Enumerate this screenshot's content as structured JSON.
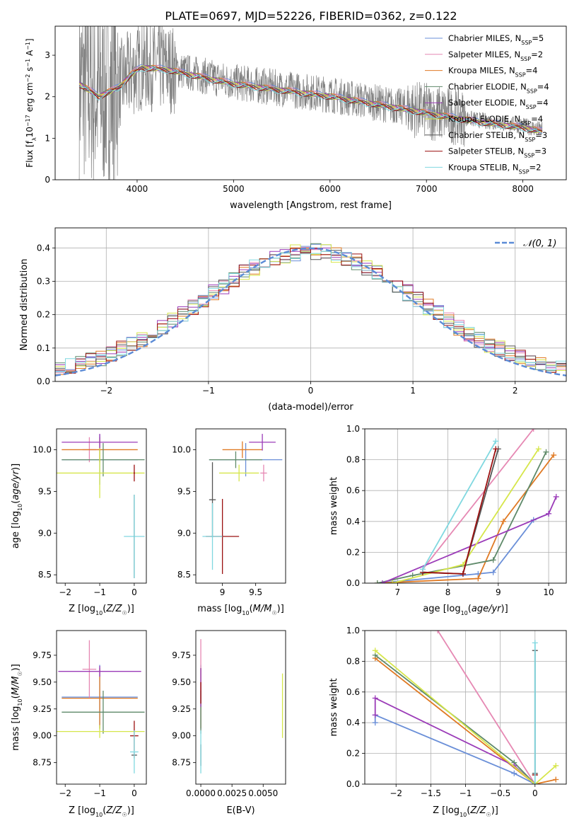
{
  "figure": {
    "title": "PLATE=0697, MJD=52226, FIBERID=0362, z=0.122"
  },
  "series_legend": [
    {
      "name": "Chabrier MILES, N_SSP=5",
      "main": "Chabrier MILES, N",
      "sub": "SSP",
      "suffix": "=5",
      "color": "#6a8fd8"
    },
    {
      "name": "Salpeter MILES, N_SSP=2",
      "main": "Salpeter MILES, N",
      "sub": "SSP",
      "suffix": "=2",
      "color": "#e688b3"
    },
    {
      "name": "Kroupa MILES, N_SSP=4",
      "main": "Kroupa MILES, N",
      "sub": "SSP",
      "suffix": "=4",
      "color": "#e07a24"
    },
    {
      "name": "Chabrier ELODIE, N_SSP=4",
      "main": "Chabrier ELODIE, N",
      "sub": "SSP",
      "suffix": "=4",
      "color": "#5f8a6a"
    },
    {
      "name": "Salpeter ELODIE, N_SSP=4",
      "main": "Salpeter ELODIE, N",
      "sub": "SSP",
      "suffix": "=4",
      "color": "#9b3bb8"
    },
    {
      "name": "Kroupa ELODIE, N_SSP=4",
      "main": "Kroupa ELODIE, N",
      "sub": "SSP",
      "suffix": "=4",
      "color": "#d6e64a"
    },
    {
      "name": "Chabrier STELIB, N_SSP=3",
      "main": "Chabrier STELIB, N",
      "sub": "SSP",
      "suffix": "=3",
      "color": "#555555"
    },
    {
      "name": "Salpeter STELIB, N_SSP=3",
      "main": "Salpeter STELIB, N",
      "sub": "SSP",
      "suffix": "=3",
      "color": "#9b1010"
    },
    {
      "name": "Kroupa STELIB, N_SSP=2",
      "main": "Kroupa STELIB, N",
      "sub": "SSP",
      "suffix": "=2",
      "color": "#80d8e0"
    }
  ],
  "chart_data": [
    {
      "id": "spectrum",
      "type": "line",
      "xlabel": "wavelength [Angstrom, rest frame]",
      "ylabel": "Flux [f_λ 10^-17 erg cm^-2 s^-1 A^-1]",
      "xlim": [
        3150,
        8450
      ],
      "ylim": [
        0,
        3.7
      ],
      "xticks": [
        4000,
        5000,
        6000,
        7000,
        8000
      ],
      "yticks": [
        0,
        1,
        2,
        3
      ],
      "data_color": "#808080",
      "model_points": [
        [
          3400,
          2.35
        ],
        [
          3600,
          2.05
        ],
        [
          3800,
          2.25
        ],
        [
          3950,
          2.6
        ],
        [
          4050,
          2.75
        ],
        [
          4300,
          2.7
        ],
        [
          4600,
          2.55
        ],
        [
          5000,
          2.35
        ],
        [
          5500,
          2.2
        ],
        [
          6000,
          2.05
        ],
        [
          6500,
          1.85
        ],
        [
          7000,
          1.65
        ],
        [
          7500,
          1.45
        ],
        [
          8000,
          1.3
        ],
        [
          8200,
          1.2
        ]
      ],
      "legend_position": "upper right"
    },
    {
      "id": "residuals",
      "type": "step",
      "xlabel": "(data-model)/error",
      "ylabel": "Normed distribution",
      "xlim": [
        -2.5,
        2.5
      ],
      "ylim": [
        0,
        0.46
      ],
      "xticks": [
        -2,
        -1,
        0,
        1,
        2
      ],
      "yticks": [
        0.0,
        0.1,
        0.2,
        0.3,
        0.4
      ],
      "grid": true,
      "reference_curve": {
        "label": "𝒩(0, 1)",
        "mean": 0,
        "sigma": 1,
        "color": "#5b8bd6"
      },
      "bin_width": 0.1,
      "legend_position": "upper right"
    },
    {
      "id": "age-vs-Z",
      "type": "errorbar",
      "xlabel": "Z [log10(Z/Z☉)]",
      "ylabel": "age [log10(age/yr)]",
      "xlim": [
        -2.25,
        0.35
      ],
      "ylim": [
        8.4,
        10.25
      ],
      "xticks": [
        -2,
        -1,
        0
      ],
      "yticks": [
        8.5,
        9.0,
        9.5,
        10.0
      ],
      "points": [
        {
          "x": -1.0,
          "xerr": 1.1,
          "y": 9.88,
          "yerr": 0.3,
          "color": "#6a8fd8"
        },
        {
          "x": -1.3,
          "xerr": 0.2,
          "y": 10.0,
          "yerr": 0.15,
          "color": "#e688b3"
        },
        {
          "x": -1.0,
          "xerr": 1.1,
          "y": 10.0,
          "yerr": 0.15,
          "color": "#e07a24"
        },
        {
          "x": -0.9,
          "xerr": 1.2,
          "y": 9.88,
          "yerr": 0.2,
          "color": "#5f8a6a"
        },
        {
          "x": -1.0,
          "xerr": 1.1,
          "y": 10.09,
          "yerr": 0.1,
          "color": "#9b3bb8"
        },
        {
          "x": -1.0,
          "xerr": 1.3,
          "y": 9.72,
          "yerr": 0.3,
          "color": "#d6e64a"
        },
        {
          "x": 0.0,
          "xerr": 0.02,
          "y": 8.96,
          "yerr": 0.5,
          "color": "#555555"
        },
        {
          "x": 0.0,
          "xerr": 0.02,
          "y": 9.72,
          "yerr": 0.1,
          "color": "#9b1010"
        },
        {
          "x": 0.0,
          "xerr": 0.3,
          "y": 8.96,
          "yerr": 0.5,
          "color": "#80d8e0"
        }
      ]
    },
    {
      "id": "age-vs-mass",
      "type": "errorbar",
      "xlabel": "mass [log10(M/M☉)]",
      "ylabel": "",
      "xlim": [
        8.6,
        9.95
      ],
      "ylim": [
        8.4,
        10.25
      ],
      "xticks": [
        9.0,
        9.5
      ],
      "yticks": [
        8.5,
        9.0,
        9.5,
        10.0
      ],
      "points": [
        {
          "x": 9.35,
          "xerr": 0.55,
          "y": 9.88,
          "yerr": 0.2,
          "color": "#6a8fd8"
        },
        {
          "x": 9.62,
          "xerr": 0.05,
          "y": 9.72,
          "yerr": 0.1,
          "color": "#e688b3"
        },
        {
          "x": 9.3,
          "xerr": 0.3,
          "y": 10.0,
          "yerr": 0.1,
          "color": "#e07a24"
        },
        {
          "x": 9.2,
          "xerr": 0.4,
          "y": 9.88,
          "yerr": 0.1,
          "color": "#5f8a6a"
        },
        {
          "x": 9.6,
          "xerr": 0.2,
          "y": 10.09,
          "yerr": 0.1,
          "color": "#9b3bb8"
        },
        {
          "x": 9.25,
          "xerr": 0.3,
          "y": 9.72,
          "yerr": 0.1,
          "color": "#d6e64a"
        },
        {
          "x": 8.85,
          "xerr": 0.05,
          "y": 9.4,
          "yerr": 0.45,
          "color": "#555555"
        },
        {
          "x": 9.0,
          "xerr": 0.25,
          "y": 8.96,
          "yerr": 0.45,
          "color": "#9b1010"
        },
        {
          "x": 8.85,
          "xerr": 0.15,
          "y": 8.96,
          "yerr": 0.4,
          "color": "#80d8e0"
        }
      ]
    },
    {
      "id": "weight-vs-age",
      "type": "line",
      "xlabel": "age [log10(age/yr)]",
      "ylabel": "mass weight",
      "xlim": [
        6.35,
        10.35
      ],
      "ylim": [
        0,
        1.0
      ],
      "xticks": [
        7,
        8,
        9,
        10
      ],
      "yticks": [
        0.0,
        0.2,
        0.4,
        0.6,
        0.8,
        1.0
      ],
      "grid": true,
      "series": [
        {
          "color": "#6a8fd8",
          "points": [
            [
              6.6,
              0.0
            ],
            [
              8.6,
              0.06
            ],
            [
              8.9,
              0.07
            ],
            [
              9.7,
              0.41
            ],
            [
              10.0,
              0.45
            ]
          ]
        },
        {
          "color": "#e688b3",
          "points": [
            [
              7.5,
              0.09
            ],
            [
              9.7,
              1.0
            ]
          ]
        },
        {
          "color": "#e07a24",
          "points": [
            [
              6.6,
              0.0
            ],
            [
              8.6,
              0.03
            ],
            [
              9.1,
              0.4
            ],
            [
              10.1,
              0.83
            ]
          ]
        },
        {
          "color": "#5f8a6a",
          "points": [
            [
              6.6,
              0.0
            ],
            [
              7.3,
              0.05
            ],
            [
              8.9,
              0.15
            ],
            [
              9.95,
              0.85
            ]
          ]
        },
        {
          "color": "#9b3bb8",
          "points": [
            [
              6.7,
              0.0
            ],
            [
              10.0,
              0.45
            ],
            [
              10.15,
              0.56
            ]
          ]
        },
        {
          "color": "#d6e64a",
          "points": [
            [
              6.9,
              0.0
            ],
            [
              8.3,
              0.12
            ],
            [
              9.8,
              0.87
            ]
          ]
        },
        {
          "color": "#555555",
          "points": [
            [
              7.5,
              0.07
            ],
            [
              8.3,
              0.06
            ],
            [
              9.0,
              0.87
            ]
          ]
        },
        {
          "color": "#9b1010",
          "points": [
            [
              7.5,
              0.07
            ],
            [
              8.3,
              0.06
            ],
            [
              8.95,
              0.87
            ]
          ]
        },
        {
          "color": "#80d8e0",
          "points": [
            [
              7.5,
              0.09
            ],
            [
              8.95,
              0.92
            ]
          ]
        }
      ]
    },
    {
      "id": "mass-vs-Z",
      "type": "errorbar",
      "xlabel": "Z [log10(Z/Z☉)]",
      "ylabel": "mass [log10(M/M☉)]",
      "xlim": [
        -2.25,
        0.35
      ],
      "ylim": [
        8.55,
        9.98
      ],
      "xticks": [
        -2,
        -1,
        0
      ],
      "yticks": [
        8.75,
        9.0,
        9.25,
        9.5,
        9.75
      ],
      "points": [
        {
          "x": -1.0,
          "xerr": 1.1,
          "y": 9.36,
          "yerr": 0.3,
          "color": "#6a8fd8"
        },
        {
          "x": -1.3,
          "xerr": 0.2,
          "y": 9.62,
          "yerr": 0.27,
          "color": "#e688b3"
        },
        {
          "x": -1.0,
          "xerr": 1.1,
          "y": 9.35,
          "yerr": 0.28,
          "color": "#e07a24"
        },
        {
          "x": -0.9,
          "xerr": 1.2,
          "y": 9.22,
          "yerr": 0.2,
          "color": "#5f8a6a"
        },
        {
          "x": -1.0,
          "xerr": 1.2,
          "y": 9.6,
          "yerr": 0.05,
          "color": "#9b3bb8"
        },
        {
          "x": -1.0,
          "xerr": 1.3,
          "y": 9.04,
          "yerr": 0.06,
          "color": "#d6e64a"
        },
        {
          "x": 0.0,
          "xerr": 0.08,
          "y": 8.82,
          "yerr": 0.03,
          "color": "#555555"
        },
        {
          "x": 0.0,
          "xerr": 0.12,
          "y": 9.0,
          "yerr": 0.14,
          "color": "#9b1010"
        },
        {
          "x": 0.0,
          "xerr": 0.12,
          "y": 8.85,
          "yerr": 0.2,
          "color": "#80d8e0"
        }
      ]
    },
    {
      "id": "mass-vs-EBV",
      "type": "errorbar",
      "xlabel": "E(B-V)",
      "ylabel": "",
      "xlim": [
        -0.0004,
        0.0068
      ],
      "ylim": [
        8.55,
        9.98
      ],
      "xticks": [
        0.0,
        0.0025,
        0.005
      ],
      "xticklabels": [
        "0.0000",
        "0.0025",
        "0.0050"
      ],
      "yticks": [
        8.75,
        9.0,
        9.25,
        9.5,
        9.75
      ],
      "points": [
        {
          "x": 0.0,
          "y": 9.36,
          "yerr": 0.3,
          "color": "#6a8fd8"
        },
        {
          "x": 0.0,
          "y": 9.62,
          "yerr": 0.28,
          "color": "#e688b3"
        },
        {
          "x": 0.0,
          "y": 9.35,
          "yerr": 0.28,
          "color": "#e07a24"
        },
        {
          "x": 0.0,
          "y": 9.22,
          "yerr": 0.2,
          "color": "#5f8a6a"
        },
        {
          "x": 0.0,
          "y": 9.45,
          "yerr": 0.18,
          "color": "#9b3bb8"
        },
        {
          "x": 0.00655,
          "y": 9.28,
          "yerr": 0.3,
          "color": "#d6e64a"
        },
        {
          "x": 0.0,
          "y": 8.82,
          "yerr": 0.1,
          "color": "#555555"
        },
        {
          "x": 0.0,
          "y": 9.4,
          "yerr": 0.1,
          "color": "#9b1010"
        },
        {
          "x": 0.0,
          "y": 8.85,
          "yerr": 0.2,
          "color": "#80d8e0"
        }
      ]
    },
    {
      "id": "weight-vs-Z",
      "type": "line",
      "xlabel": "Z [log10(Z/Z☉)]",
      "ylabel": "mass weight",
      "xlim": [
        -2.45,
        0.45
      ],
      "ylim": [
        0,
        1.0
      ],
      "xticks": [
        -2.0,
        -1.5,
        -1.0,
        -0.5,
        0.0
      ],
      "yticks": [
        0.0,
        0.2,
        0.4,
        0.6,
        0.8,
        1.0
      ],
      "grid": true,
      "series": [
        {
          "color": "#6a8fd8",
          "points": [
            [
              -2.3,
              0.4
            ],
            [
              -2.3,
              0.45
            ],
            [
              -0.3,
              0.07
            ],
            [
              0.0,
              0.0
            ]
          ]
        },
        {
          "color": "#e688b3",
          "points": [
            [
              -1.4,
              1.0
            ],
            [
              0.0,
              0.0
            ]
          ]
        },
        {
          "color": "#e07a24",
          "points": [
            [
              -2.3,
              0.82
            ],
            [
              0.0,
              0.0
            ],
            [
              0.3,
              0.03
            ]
          ]
        },
        {
          "color": "#5f8a6a",
          "points": [
            [
              -2.3,
              0.84
            ],
            [
              -0.3,
              0.14
            ],
            [
              0.0,
              0.0
            ]
          ]
        },
        {
          "color": "#9b3bb8",
          "points": [
            [
              -2.3,
              0.45
            ],
            [
              -2.3,
              0.56
            ],
            [
              -0.3,
              0.12
            ],
            [
              0.0,
              0.0
            ]
          ]
        },
        {
          "color": "#d6e64a",
          "points": [
            [
              -2.3,
              0.87
            ],
            [
              0.0,
              0.0
            ],
            [
              0.3,
              0.12
            ]
          ]
        },
        {
          "color": "#555555",
          "points": [
            [
              0.0,
              0.07
            ],
            [
              0.0,
              0.87
            ]
          ]
        },
        {
          "color": "#9b1010",
          "points": [
            [
              0.0,
              0.06
            ],
            [
              0.0,
              0.06
            ]
          ]
        },
        {
          "color": "#80d8e0",
          "points": [
            [
              0.0,
              0.0
            ],
            [
              0.0,
              0.92
            ]
          ]
        }
      ]
    }
  ]
}
